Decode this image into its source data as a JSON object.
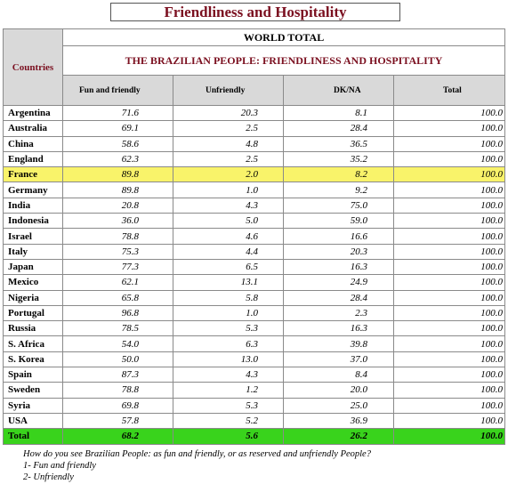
{
  "title": "Friendliness and Hospitality",
  "table": {
    "countries_header": "Countries",
    "world_total_header": "WORLD TOTAL",
    "subtitle": "THE BRAZILIAN PEOPLE: FRIENDLINESS AND HOSPITALITY",
    "columns": [
      "Fun and friendly",
      "Unfriendly",
      "DK/NA",
      "Total"
    ],
    "rows": [
      {
        "country": "Argentina",
        "values": [
          "71.6",
          "20.3",
          "8.1",
          "100.0"
        ]
      },
      {
        "country": "Australia",
        "values": [
          "69.1",
          "2.5",
          "28.4",
          "100.0"
        ]
      },
      {
        "country": "China",
        "values": [
          "58.6",
          "4.8",
          "36.5",
          "100.0"
        ]
      },
      {
        "country": "England",
        "values": [
          "62.3",
          "2.5",
          "35.2",
          "100.0"
        ]
      },
      {
        "country": "France",
        "values": [
          "89.8",
          "2.0",
          "8.2",
          "100.0"
        ],
        "highlight": "yellow"
      },
      {
        "country": "Germany",
        "values": [
          "89.8",
          "1.0",
          "9.2",
          "100.0"
        ]
      },
      {
        "country": "India",
        "values": [
          "20.8",
          "4.3",
          "75.0",
          "100.0"
        ]
      },
      {
        "country": "Indonesia",
        "values": [
          "36.0",
          "5.0",
          "59.0",
          "100.0"
        ]
      },
      {
        "country": "Israel",
        "values": [
          "78.8",
          "4.6",
          "16.6",
          "100.0"
        ]
      },
      {
        "country": "Italy",
        "values": [
          "75.3",
          "4.4",
          "20.3",
          "100.0"
        ]
      },
      {
        "country": "Japan",
        "values": [
          "77.3",
          "6.5",
          "16.3",
          "100.0"
        ]
      },
      {
        "country": "Mexico",
        "values": [
          "62.1",
          "13.1",
          "24.9",
          "100.0"
        ]
      },
      {
        "country": "Nigeria",
        "values": [
          "65.8",
          "5.8",
          "28.4",
          "100.0"
        ]
      },
      {
        "country": "Portugal",
        "values": [
          "96.8",
          "1.0",
          "2.3",
          "100.0"
        ]
      },
      {
        "country": "Russia",
        "values": [
          "78.5",
          "5.3",
          "16.3",
          "100.0"
        ]
      },
      {
        "country": "S. Africa",
        "values": [
          "54.0",
          "6.3",
          "39.8",
          "100.0"
        ]
      },
      {
        "country": "S. Korea",
        "values": [
          "50.0",
          "13.0",
          "37.0",
          "100.0"
        ]
      },
      {
        "country": "Spain",
        "values": [
          "87.3",
          "4.3",
          "8.4",
          "100.0"
        ]
      },
      {
        "country": "Sweden",
        "values": [
          "78.8",
          "1.2",
          "20.0",
          "100.0"
        ]
      },
      {
        "country": "Syria",
        "values": [
          "69.8",
          "5.3",
          "25.0",
          "100.0"
        ]
      },
      {
        "country": "USA",
        "values": [
          "57.8",
          "5.2",
          "36.9",
          "100.0"
        ]
      },
      {
        "country": "Total",
        "values": [
          "68.2",
          "5.6",
          "26.2",
          "100.0"
        ],
        "highlight": "green"
      }
    ]
  },
  "footer": {
    "question": "How do you see Brazilian People: as fun and friendly, or as reserved and unfriendly People?",
    "option1": "1- Fun and friendly",
    "option2": "2- Unfriendly"
  },
  "colors": {
    "title": "#7b1020",
    "header_bg": "#d9d9d9",
    "highlight_yellow": "#f9f36a",
    "highlight_green": "#39d31c"
  }
}
